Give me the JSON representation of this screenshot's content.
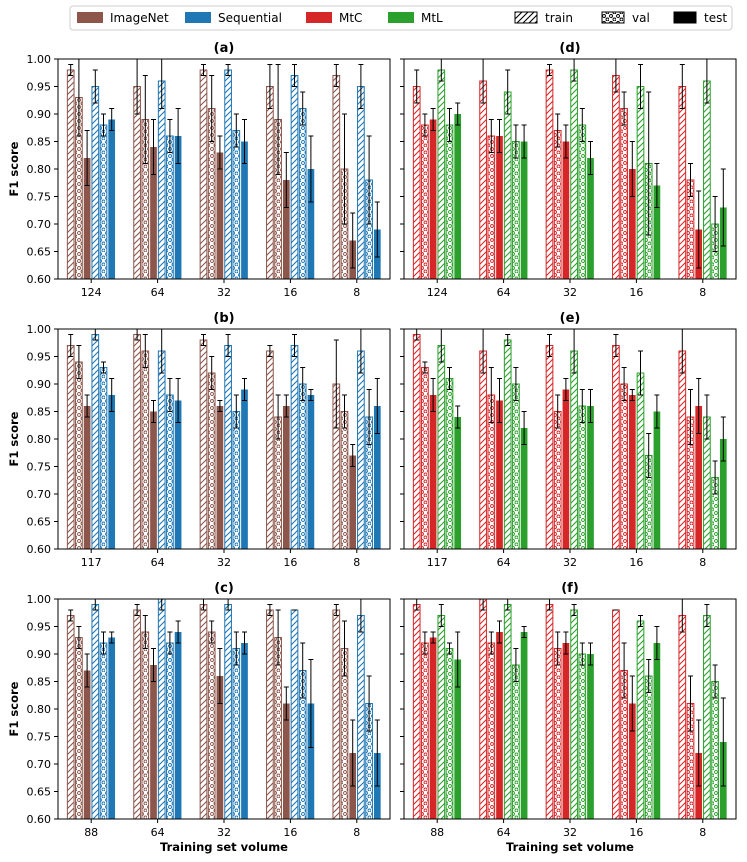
{
  "legend": {
    "models": [
      {
        "name": "ImageNet",
        "color": "#8c564b"
      },
      {
        "name": "Sequential",
        "color": "#1f77b4"
      },
      {
        "name": "MtC",
        "color": "#d62728"
      },
      {
        "name": "MtL",
        "color": "#2ca02c"
      }
    ],
    "splits": [
      "train",
      "val",
      "test"
    ]
  },
  "chart_data": [
    {
      "type": "bar",
      "title": "(a)",
      "ylabel": "F1 score",
      "xlabel": "",
      "ylim": [
        0.6,
        1.0
      ],
      "categories": [
        "124",
        "64",
        "32",
        "16",
        "8"
      ],
      "series": [
        {
          "name": "ImageNet train",
          "model": "ImageNet",
          "split": "train",
          "values": [
            0.98,
            0.95,
            0.98,
            0.95,
            0.97
          ],
          "errors": [
            0.01,
            0.05,
            0.01,
            0.04,
            0.02
          ]
        },
        {
          "name": "ImageNet val",
          "model": "ImageNet",
          "split": "val",
          "values": [
            0.93,
            0.89,
            0.91,
            0.89,
            0.8
          ],
          "errors": [
            0.07,
            0.08,
            0.06,
            0.1,
            0.1
          ]
        },
        {
          "name": "ImageNet test",
          "model": "ImageNet",
          "split": "test",
          "values": [
            0.82,
            0.84,
            0.83,
            0.78,
            0.67
          ],
          "errors": [
            0.05,
            0.05,
            0.03,
            0.05,
            0.05
          ]
        },
        {
          "name": "Sequential train",
          "model": "Sequential",
          "split": "train",
          "values": [
            0.95,
            0.96,
            0.98,
            0.97,
            0.95
          ],
          "errors": [
            0.03,
            0.05,
            0.01,
            0.02,
            0.04
          ]
        },
        {
          "name": "Sequential val",
          "model": "Sequential",
          "split": "val",
          "values": [
            0.88,
            0.86,
            0.87,
            0.91,
            0.78
          ],
          "errors": [
            0.02,
            0.03,
            0.03,
            0.03,
            0.08
          ]
        },
        {
          "name": "Sequential test",
          "model": "Sequential",
          "split": "test",
          "values": [
            0.89,
            0.86,
            0.85,
            0.8,
            0.69
          ],
          "errors": [
            0.02,
            0.05,
            0.04,
            0.06,
            0.05
          ]
        }
      ]
    },
    {
      "type": "bar",
      "title": "(d)",
      "ylabel": "",
      "xlabel": "",
      "ylim": [
        0.6,
        1.0
      ],
      "categories": [
        "124",
        "64",
        "32",
        "16",
        "8"
      ],
      "series": [
        {
          "name": "MtC train",
          "model": "MtC",
          "split": "train",
          "values": [
            0.95,
            0.96,
            0.98,
            0.97,
            0.95
          ],
          "errors": [
            0.03,
            0.04,
            0.01,
            0.03,
            0.04
          ]
        },
        {
          "name": "MtC val",
          "model": "MtC",
          "split": "val",
          "values": [
            0.88,
            0.86,
            0.87,
            0.91,
            0.78
          ],
          "errors": [
            0.02,
            0.03,
            0.03,
            0.03,
            0.03
          ]
        },
        {
          "name": "MtC test",
          "model": "MtC",
          "split": "test",
          "values": [
            0.89,
            0.86,
            0.85,
            0.8,
            0.69
          ],
          "errors": [
            0.02,
            0.03,
            0.03,
            0.05,
            0.07
          ]
        },
        {
          "name": "MtL train",
          "model": "MtL",
          "split": "train",
          "values": [
            0.98,
            0.94,
            0.98,
            0.95,
            0.96
          ],
          "errors": [
            0.02,
            0.04,
            0.02,
            0.04,
            0.04
          ]
        },
        {
          "name": "MtL val",
          "model": "MtL",
          "split": "val",
          "values": [
            0.88,
            0.85,
            0.88,
            0.81,
            0.7
          ],
          "errors": [
            0.03,
            0.03,
            0.03,
            0.13,
            0.05
          ]
        },
        {
          "name": "MtL test",
          "model": "MtL",
          "split": "test",
          "values": [
            0.9,
            0.85,
            0.82,
            0.77,
            0.73
          ],
          "errors": [
            0.02,
            0.03,
            0.03,
            0.04,
            0.07
          ]
        }
      ]
    },
    {
      "type": "bar",
      "title": "(b)",
      "ylabel": "F1 score",
      "xlabel": "",
      "ylim": [
        0.6,
        1.0
      ],
      "categories": [
        "117",
        "64",
        "32",
        "16",
        "8"
      ],
      "series": [
        {
          "name": "ImageNet train",
          "model": "ImageNet",
          "split": "train",
          "values": [
            0.97,
            0.99,
            0.98,
            0.96,
            0.9
          ],
          "errors": [
            0.02,
            0.01,
            0.01,
            0.01,
            0.08
          ]
        },
        {
          "name": "ImageNet val",
          "model": "ImageNet",
          "split": "val",
          "values": [
            0.94,
            0.96,
            0.92,
            0.84,
            0.85
          ],
          "errors": [
            0.03,
            0.03,
            0.03,
            0.04,
            0.03
          ]
        },
        {
          "name": "ImageNet test",
          "model": "ImageNet",
          "split": "test",
          "values": [
            0.86,
            0.85,
            0.86,
            0.86,
            0.77
          ],
          "errors": [
            0.02,
            0.02,
            0.01,
            0.02,
            0.02
          ]
        },
        {
          "name": "Sequential train",
          "model": "Sequential",
          "split": "train",
          "values": [
            0.99,
            0.96,
            0.97,
            0.97,
            0.96
          ],
          "errors": [
            0.01,
            0.04,
            0.02,
            0.02,
            0.04
          ]
        },
        {
          "name": "Sequential val",
          "model": "Sequential",
          "split": "val",
          "values": [
            0.93,
            0.88,
            0.85,
            0.9,
            0.84
          ],
          "errors": [
            0.01,
            0.03,
            0.03,
            0.03,
            0.05
          ]
        },
        {
          "name": "Sequential test",
          "model": "Sequential",
          "split": "test",
          "values": [
            0.88,
            0.87,
            0.89,
            0.88,
            0.86
          ],
          "errors": [
            0.03,
            0.04,
            0.02,
            0.01,
            0.05
          ]
        }
      ]
    },
    {
      "type": "bar",
      "title": "(e)",
      "ylabel": "",
      "xlabel": "",
      "ylim": [
        0.6,
        1.0
      ],
      "categories": [
        "117",
        "64",
        "32",
        "16",
        "8"
      ],
      "series": [
        {
          "name": "MtC train",
          "model": "MtC",
          "split": "train",
          "values": [
            0.99,
            0.96,
            0.97,
            0.97,
            0.96
          ],
          "errors": [
            0.01,
            0.04,
            0.02,
            0.02,
            0.04
          ]
        },
        {
          "name": "MtC val",
          "model": "MtC",
          "split": "val",
          "values": [
            0.93,
            0.88,
            0.85,
            0.9,
            0.84
          ],
          "errors": [
            0.01,
            0.05,
            0.03,
            0.03,
            0.05
          ]
        },
        {
          "name": "MtC test",
          "model": "MtC",
          "split": "test",
          "values": [
            0.88,
            0.87,
            0.89,
            0.88,
            0.86
          ],
          "errors": [
            0.03,
            0.04,
            0.02,
            0.01,
            0.05
          ]
        },
        {
          "name": "MtL train",
          "model": "MtL",
          "split": "train",
          "values": [
            0.97,
            0.98,
            0.96,
            0.92,
            0.84
          ],
          "errors": [
            0.03,
            0.01,
            0.04,
            0.04,
            0.04
          ]
        },
        {
          "name": "MtL val",
          "model": "MtL",
          "split": "val",
          "values": [
            0.91,
            0.9,
            0.86,
            0.77,
            0.73
          ],
          "errors": [
            0.02,
            0.03,
            0.03,
            0.04,
            0.03
          ]
        },
        {
          "name": "MtL test",
          "model": "MtL",
          "split": "test",
          "values": [
            0.84,
            0.82,
            0.86,
            0.85,
            0.8
          ],
          "errors": [
            0.02,
            0.03,
            0.03,
            0.03,
            0.04
          ]
        }
      ]
    },
    {
      "type": "bar",
      "title": "(c)",
      "ylabel": "F1 score",
      "xlabel": "Training set volume",
      "ylim": [
        0.6,
        1.0
      ],
      "categories": [
        "88",
        "64",
        "32",
        "16",
        "8"
      ],
      "series": [
        {
          "name": "ImageNet train",
          "model": "ImageNet",
          "split": "train",
          "values": [
            0.97,
            0.98,
            0.99,
            0.98,
            0.98
          ],
          "errors": [
            0.01,
            0.01,
            0.01,
            0.01,
            0.01
          ]
        },
        {
          "name": "ImageNet val",
          "model": "ImageNet",
          "split": "val",
          "values": [
            0.93,
            0.94,
            0.94,
            0.93,
            0.91
          ],
          "errors": [
            0.02,
            0.03,
            0.02,
            0.05,
            0.05
          ]
        },
        {
          "name": "ImageNet test",
          "model": "ImageNet",
          "split": "test",
          "values": [
            0.87,
            0.88,
            0.86,
            0.81,
            0.72
          ],
          "errors": [
            0.03,
            0.03,
            0.05,
            0.03,
            0.06
          ]
        },
        {
          "name": "Sequential train",
          "model": "Sequential",
          "split": "train",
          "values": [
            0.99,
            1.0,
            0.99,
            0.98,
            0.97
          ],
          "errors": [
            0.01,
            0.02,
            0.01,
            0.0,
            0.03
          ]
        },
        {
          "name": "Sequential val",
          "model": "Sequential",
          "split": "val",
          "values": [
            0.92,
            0.92,
            0.91,
            0.87,
            0.81
          ],
          "errors": [
            0.02,
            0.02,
            0.03,
            0.05,
            0.05
          ]
        },
        {
          "name": "Sequential test",
          "model": "Sequential",
          "split": "test",
          "values": [
            0.93,
            0.94,
            0.92,
            0.81,
            0.72
          ],
          "errors": [
            0.01,
            0.02,
            0.02,
            0.08,
            0.06
          ]
        }
      ]
    },
    {
      "type": "bar",
      "title": "(f)",
      "ylabel": "",
      "xlabel": "Training set volume",
      "ylim": [
        0.6,
        1.0
      ],
      "categories": [
        "88",
        "64",
        "32",
        "16",
        "8"
      ],
      "series": [
        {
          "name": "MtC train",
          "model": "MtC",
          "split": "train",
          "values": [
            0.99,
            1.0,
            0.99,
            0.98,
            0.97
          ],
          "errors": [
            0.01,
            0.02,
            0.01,
            0.0,
            0.03
          ]
        },
        {
          "name": "MtC val",
          "model": "MtC",
          "split": "val",
          "values": [
            0.92,
            0.92,
            0.91,
            0.87,
            0.81
          ],
          "errors": [
            0.02,
            0.02,
            0.03,
            0.05,
            0.05
          ]
        },
        {
          "name": "MtC test",
          "model": "MtC",
          "split": "test",
          "values": [
            0.93,
            0.94,
            0.92,
            0.81,
            0.72
          ],
          "errors": [
            0.01,
            0.02,
            0.02,
            0.05,
            0.06
          ]
        },
        {
          "name": "MtL train",
          "model": "MtL",
          "split": "train",
          "values": [
            0.97,
            0.99,
            0.98,
            0.96,
            0.97
          ],
          "errors": [
            0.02,
            0.01,
            0.01,
            0.01,
            0.02
          ]
        },
        {
          "name": "MtL val",
          "model": "MtL",
          "split": "val",
          "values": [
            0.91,
            0.88,
            0.9,
            0.86,
            0.85
          ],
          "errors": [
            0.01,
            0.03,
            0.02,
            0.03,
            0.03
          ]
        },
        {
          "name": "MtL test",
          "model": "MtL",
          "split": "test",
          "values": [
            0.89,
            0.94,
            0.9,
            0.92,
            0.74
          ],
          "errors": [
            0.05,
            0.01,
            0.02,
            0.03,
            0.08
          ]
        }
      ]
    }
  ]
}
